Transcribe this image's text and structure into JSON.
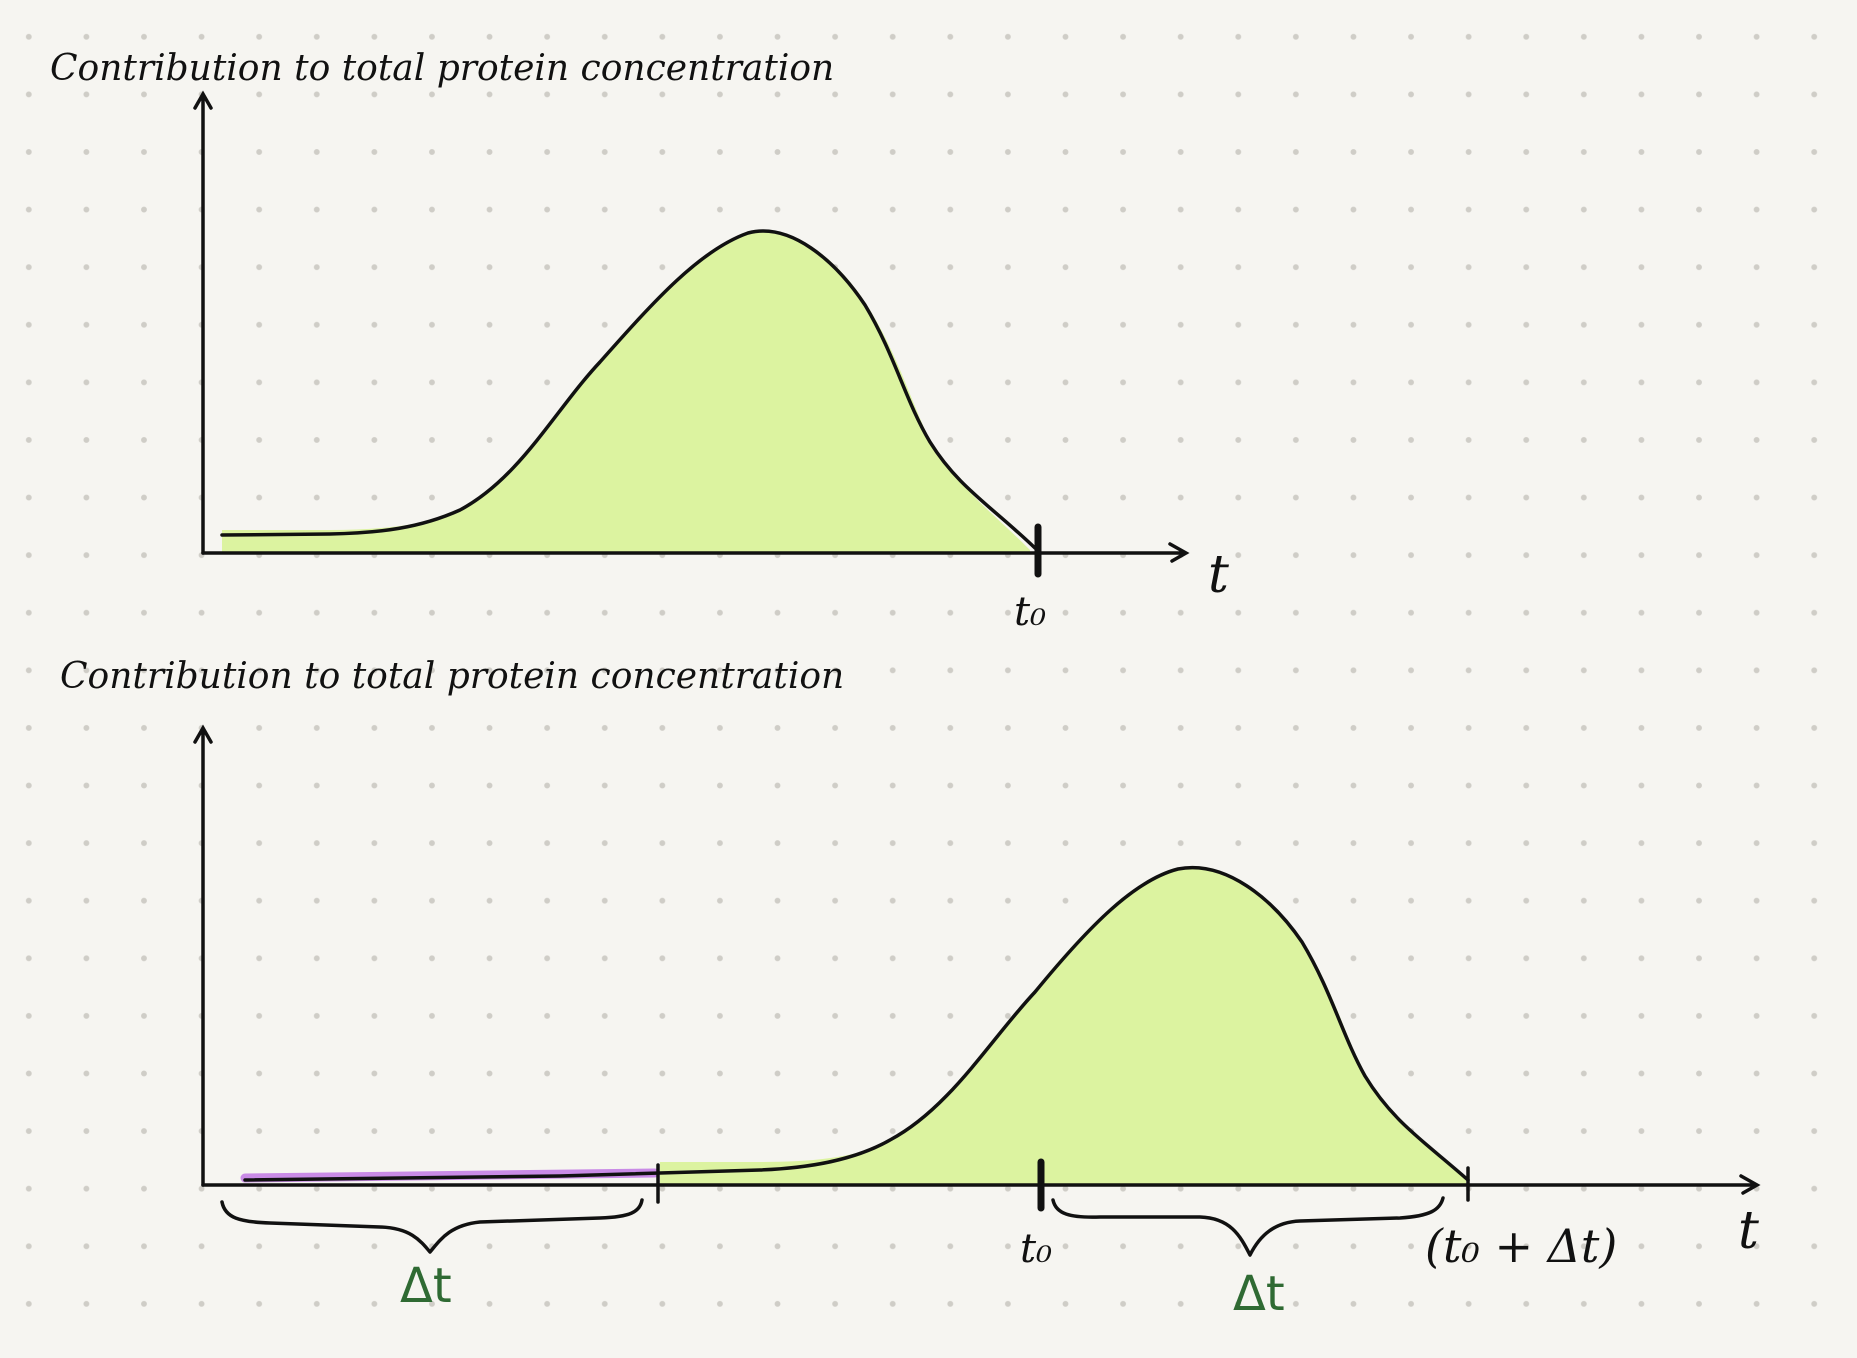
{
  "top_plot": {
    "y_axis_label": "Contribution to total protein concentration",
    "x_axis_label": "t",
    "tick_label": "t₀"
  },
  "bottom_plot": {
    "y_axis_label": "Contribution to total protein concentration",
    "x_axis_label": "t",
    "tick_label_start": "t₀",
    "tick_label_end": "(t₀ + Δt)",
    "left_brace_label": "Δt",
    "right_brace_label": "Δt"
  },
  "colors": {
    "curve_fill": "#dcf3a0",
    "past_segment": "#c98be6",
    "ink": "#111111",
    "delta_ink": "#2f6a33",
    "background": "#f6f5f1"
  }
}
